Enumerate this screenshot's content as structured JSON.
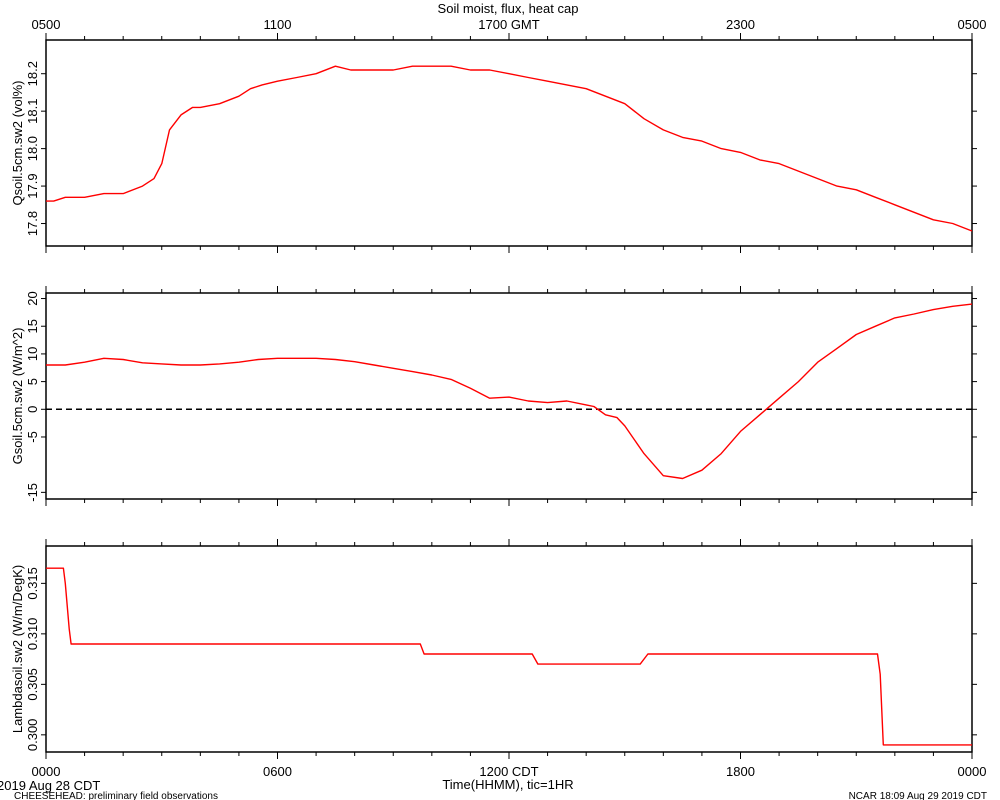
{
  "figure": {
    "title": "Soil moist, flux, heat cap",
    "time_label": "Time(HHMM), tic=1HR",
    "date_label": "2019 Aug 28 CDT",
    "footer_left": "CHEESEHEAD: preliminary field observations",
    "footer_right": "NCAR 18:09 Aug 29 2019 CDT",
    "line_color": "#ff0000",
    "zero_line_color": "#000000"
  },
  "chart_data": [
    {
      "type": "line",
      "panel": "top",
      "ylabel": "Qsoil.5cm.sw2 (vol%)",
      "top_ticks": [
        "0500",
        "1100",
        "1700 GMT",
        "2300",
        "0500"
      ],
      "ylim": [
        17.74,
        18.29
      ],
      "yticks": [
        "17.8",
        "17.9",
        "18.0",
        "18.1",
        "18.2"
      ],
      "xlim": [
        0,
        24
      ],
      "series": [
        {
          "x": [
            0,
            0.2,
            0.5,
            1,
            1.5,
            2,
            2.5,
            2.8,
            3,
            3.2,
            3.5,
            3.8,
            4,
            4.5,
            5,
            5.3,
            5.6,
            6,
            6.5,
            7,
            7.5,
            7.9,
            8.2,
            8.5,
            9,
            9.5,
            10,
            10.5,
            11,
            11.5,
            12,
            12.5,
            13,
            13.5,
            14,
            14.5,
            15,
            15.5,
            16,
            16.5,
            17,
            17.5,
            18,
            18.5,
            19,
            19.5,
            20,
            20.5,
            21,
            21.5,
            22,
            22.5,
            23,
            23.5,
            24
          ],
          "y": [
            17.86,
            17.86,
            17.87,
            17.87,
            17.88,
            17.88,
            17.9,
            17.92,
            17.96,
            18.05,
            18.09,
            18.11,
            18.11,
            18.12,
            18.14,
            18.16,
            18.17,
            18.18,
            18.19,
            18.2,
            18.22,
            18.21,
            18.21,
            18.21,
            18.21,
            18.22,
            18.22,
            18.22,
            18.21,
            18.21,
            18.2,
            18.19,
            18.18,
            18.17,
            18.16,
            18.14,
            18.12,
            18.08,
            18.05,
            18.03,
            18.02,
            18.0,
            17.99,
            17.97,
            17.96,
            17.94,
            17.92,
            17.9,
            17.89,
            17.87,
            17.85,
            17.83,
            17.81,
            17.8,
            17.78
          ]
        }
      ]
    },
    {
      "type": "line",
      "panel": "middle",
      "ylabel": "Gsoil.5cm.sw2 (W/m^2)",
      "ylim": [
        -16.2,
        21
      ],
      "yticks": [
        "20",
        "15",
        "10",
        "5",
        "0",
        "-5",
        "-15"
      ],
      "ytick_values": [
        20,
        15,
        10,
        5,
        0,
        -5,
        -15
      ],
      "xlim": [
        0,
        24
      ],
      "series": [
        {
          "x": [
            0,
            0.5,
            1,
            1.5,
            2,
            2.5,
            3,
            3.5,
            4,
            4.5,
            5,
            5.5,
            6,
            6.5,
            7,
            7.5,
            8,
            8.5,
            9,
            9.5,
            10,
            10.5,
            11,
            11.5,
            12,
            12.5,
            13,
            13.5,
            14,
            14.2,
            14.5,
            14.8,
            15,
            15.5,
            16,
            16.5,
            17,
            17.5,
            18,
            18.5,
            19,
            19.5,
            20,
            20.5,
            21,
            21.5,
            22,
            22.5,
            23,
            23.5,
            24
          ],
          "y": [
            8,
            8,
            8.5,
            9.2,
            9,
            8.4,
            8.2,
            8,
            8,
            8.2,
            8.5,
            9,
            9.2,
            9.2,
            9.2,
            9.0,
            8.6,
            8.0,
            7.4,
            6.8,
            6.2,
            5.4,
            3.8,
            2.0,
            2.2,
            1.5,
            1.2,
            1.5,
            0.8,
            0.5,
            -1.0,
            -1.5,
            -3,
            -8,
            -12,
            -12.5,
            -11,
            -8,
            -4,
            -1,
            2,
            5,
            8.5,
            11,
            13.5,
            15,
            16.5,
            17.2,
            18,
            18.6,
            19
          ]
        }
      ],
      "reference_line": 0
    },
    {
      "type": "line",
      "panel": "bottom",
      "ylabel": "Lambdasoil.sw2 (W/m/DegK)",
      "ylim": [
        0.2983,
        0.3187
      ],
      "yticks": [
        "0.315",
        "0.310",
        "0.305",
        "0.300"
      ],
      "ytick_values": [
        0.315,
        0.31,
        0.305,
        0.3
      ],
      "x_tick_labels": [
        "0000",
        "0600",
        "1200 CDT",
        "1800",
        "0000"
      ],
      "xlim": [
        0,
        24
      ],
      "series": [
        {
          "x": [
            0,
            0.45,
            0.5,
            0.6,
            0.65,
            9.7,
            9.8,
            12.6,
            12.75,
            15.4,
            15.6,
            21.55,
            21.62,
            21.7,
            24
          ],
          "y": [
            0.3165,
            0.3165,
            0.315,
            0.3105,
            0.309,
            0.309,
            0.308,
            0.308,
            0.307,
            0.307,
            0.308,
            0.308,
            0.306,
            0.299,
            0.299
          ]
        }
      ]
    }
  ]
}
